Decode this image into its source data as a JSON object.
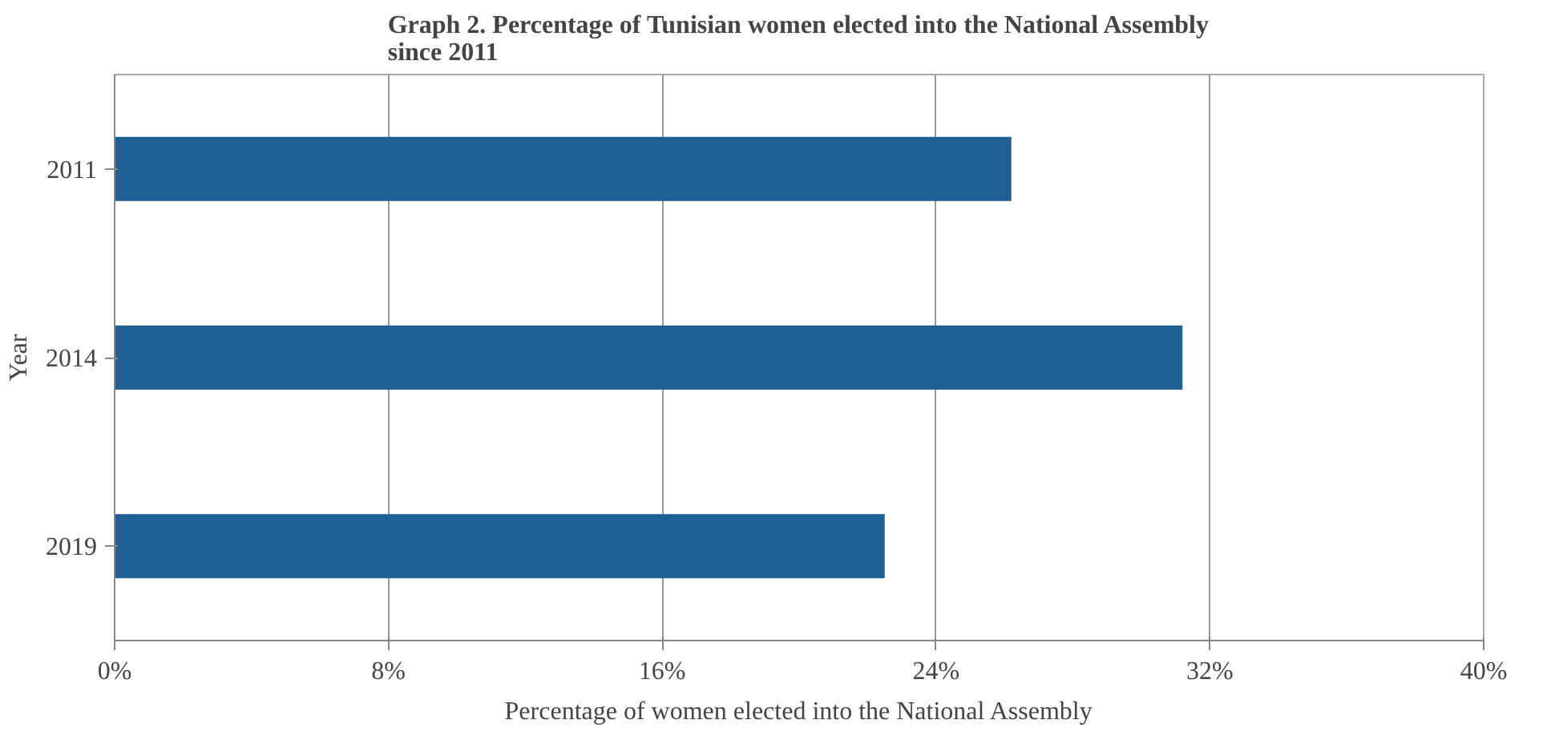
{
  "chart_data": {
    "type": "bar",
    "orientation": "horizontal",
    "title": "Graph 2. Percentage of Tunisian women elected into the National Assembly since 2011",
    "xlabel": "Percentage of women elected into the National Assembly",
    "ylabel": "Year",
    "categories": [
      "2011",
      "2014",
      "2019"
    ],
    "values": [
      26.2,
      31.2,
      22.5
    ],
    "color": "#1f5f94",
    "xlim": [
      0,
      40
    ],
    "xticks": [
      {
        "value": 0,
        "label": "0%"
      },
      {
        "value": 8,
        "label": "8%"
      },
      {
        "value": 16,
        "label": "16%"
      },
      {
        "value": 24,
        "label": "24%"
      },
      {
        "value": 32,
        "label": "32%"
      },
      {
        "value": 40,
        "label": "40%"
      }
    ],
    "grid": "x"
  }
}
